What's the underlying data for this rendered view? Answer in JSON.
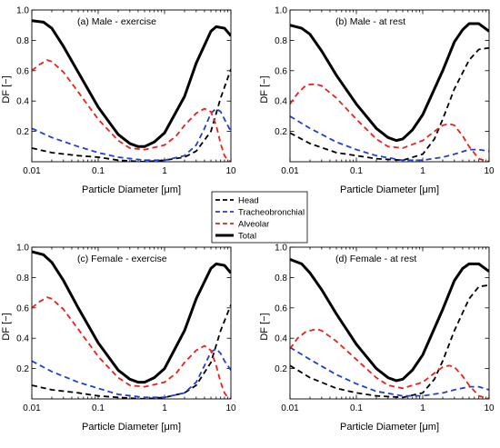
{
  "legend": {
    "entries": [
      {
        "key": "head",
        "label": "Head",
        "color": "#000000",
        "dash": "dashed"
      },
      {
        "key": "tb",
        "label": "Tracheobronchial",
        "color": "#1f3fd6",
        "dash": "dashed"
      },
      {
        "key": "alv",
        "label": "Alveolar",
        "color": "#e8221c",
        "dash": "dashed"
      },
      {
        "key": "total",
        "label": "Total",
        "color": "#000000",
        "dash": "solid"
      }
    ]
  },
  "chart_data": [
    {
      "type": "line",
      "title": "(a)   Male - exercise",
      "xlabel": "Particle Diameter [μm]",
      "ylabel": "DF [−]",
      "xscale": "log",
      "xlim": [
        0.01,
        10
      ],
      "ylim": [
        0,
        1.0
      ],
      "xticks": [
        "0.01",
        "0.1",
        "1",
        "10"
      ],
      "yticks": [
        "0.2",
        "0.4",
        "0.6",
        "0.8",
        "1.0"
      ],
      "series": [
        {
          "key": "total",
          "x": [
            0.01,
            0.015,
            0.02,
            0.03,
            0.05,
            0.1,
            0.2,
            0.3,
            0.4,
            0.5,
            0.7,
            1,
            2,
            3,
            5,
            6,
            8,
            10
          ],
          "y": [
            0.93,
            0.92,
            0.88,
            0.76,
            0.59,
            0.36,
            0.18,
            0.12,
            0.1,
            0.1,
            0.13,
            0.19,
            0.43,
            0.65,
            0.86,
            0.89,
            0.88,
            0.83
          ]
        },
        {
          "key": "head",
          "x": [
            0.01,
            0.02,
            0.05,
            0.1,
            0.2,
            0.5,
            1,
            2,
            3,
            5,
            7,
            10
          ],
          "y": [
            0.09,
            0.06,
            0.04,
            0.03,
            0.01,
            0.0,
            0.01,
            0.03,
            0.07,
            0.2,
            0.42,
            0.61
          ]
        },
        {
          "key": "tb",
          "x": [
            0.01,
            0.02,
            0.05,
            0.1,
            0.2,
            0.5,
            1,
            2,
            3,
            4,
            5,
            6,
            7,
            8,
            10
          ],
          "y": [
            0.22,
            0.16,
            0.1,
            0.06,
            0.03,
            0.01,
            0.01,
            0.04,
            0.11,
            0.22,
            0.32,
            0.35,
            0.33,
            0.28,
            0.2
          ]
        },
        {
          "key": "alv",
          "x": [
            0.01,
            0.013,
            0.017,
            0.02,
            0.03,
            0.05,
            0.1,
            0.2,
            0.3,
            0.5,
            1,
            1.5,
            2,
            3,
            4,
            5,
            6,
            7,
            8,
            9,
            10
          ],
          "y": [
            0.6,
            0.64,
            0.67,
            0.66,
            0.59,
            0.46,
            0.28,
            0.14,
            0.09,
            0.08,
            0.11,
            0.17,
            0.24,
            0.32,
            0.35,
            0.33,
            0.24,
            0.12,
            0.04,
            0.01,
            0.0
          ]
        }
      ]
    },
    {
      "type": "line",
      "title": "(b)   Male - at rest",
      "xlabel": "Particle Diameter [μm]",
      "ylabel": "DF [−]",
      "xscale": "log",
      "xlim": [
        0.01,
        10
      ],
      "ylim": [
        0,
        1.0
      ],
      "xticks": [
        "0.01",
        "0.1",
        "1",
        "10"
      ],
      "yticks": [
        "0.2",
        "0.4",
        "0.6",
        "0.8",
        "1.0"
      ],
      "series": [
        {
          "key": "total",
          "x": [
            0.01,
            0.015,
            0.02,
            0.03,
            0.05,
            0.1,
            0.2,
            0.3,
            0.4,
            0.5,
            0.7,
            1,
            2,
            3,
            4,
            5,
            7,
            10
          ],
          "y": [
            0.9,
            0.88,
            0.84,
            0.73,
            0.57,
            0.38,
            0.22,
            0.16,
            0.14,
            0.15,
            0.21,
            0.31,
            0.6,
            0.79,
            0.87,
            0.91,
            0.91,
            0.86
          ]
        },
        {
          "key": "head",
          "x": [
            0.01,
            0.02,
            0.05,
            0.1,
            0.2,
            0.5,
            1,
            1.5,
            2,
            3,
            5,
            7,
            10
          ],
          "y": [
            0.19,
            0.12,
            0.06,
            0.04,
            0.02,
            0.01,
            0.05,
            0.15,
            0.28,
            0.48,
            0.67,
            0.74,
            0.75
          ]
        },
        {
          "key": "tb",
          "x": [
            0.01,
            0.02,
            0.05,
            0.1,
            0.2,
            0.5,
            1,
            2,
            3,
            5,
            7,
            10
          ],
          "y": [
            0.3,
            0.22,
            0.13,
            0.08,
            0.04,
            0.01,
            0.01,
            0.03,
            0.05,
            0.08,
            0.08,
            0.07
          ]
        },
        {
          "key": "alv",
          "x": [
            0.01,
            0.013,
            0.017,
            0.02,
            0.025,
            0.03,
            0.05,
            0.1,
            0.2,
            0.3,
            0.5,
            1,
            1.5,
            2,
            2.5,
            3,
            4,
            5,
            7,
            10
          ],
          "y": [
            0.38,
            0.45,
            0.5,
            0.51,
            0.51,
            0.5,
            0.42,
            0.28,
            0.15,
            0.1,
            0.09,
            0.14,
            0.2,
            0.24,
            0.25,
            0.24,
            0.17,
            0.1,
            0.02,
            0.0
          ]
        }
      ]
    },
    {
      "type": "line",
      "title": "(c)   Female - exercise",
      "xlabel": "Particle Diameter [μm]",
      "ylabel": "DF [−]",
      "xscale": "log",
      "xlim": [
        0.01,
        10
      ],
      "ylim": [
        0,
        1.0
      ],
      "xticks": [
        "0.01",
        "0.1",
        "1",
        "10"
      ],
      "yticks": [
        "0.2",
        "0.4",
        "0.6",
        "0.8",
        "1.0"
      ],
      "series": [
        {
          "key": "total",
          "x": [
            0.01,
            0.015,
            0.02,
            0.03,
            0.05,
            0.1,
            0.2,
            0.3,
            0.4,
            0.5,
            0.7,
            1,
            2,
            3,
            5,
            6,
            8,
            10
          ],
          "y": [
            0.97,
            0.95,
            0.9,
            0.78,
            0.6,
            0.37,
            0.19,
            0.13,
            0.11,
            0.11,
            0.14,
            0.2,
            0.45,
            0.66,
            0.86,
            0.89,
            0.88,
            0.83
          ]
        },
        {
          "key": "head",
          "x": [
            0.01,
            0.02,
            0.05,
            0.1,
            0.2,
            0.5,
            1,
            2,
            3,
            5,
            7,
            10
          ],
          "y": [
            0.09,
            0.06,
            0.04,
            0.02,
            0.01,
            0.0,
            0.01,
            0.04,
            0.09,
            0.24,
            0.45,
            0.62
          ]
        },
        {
          "key": "tb",
          "x": [
            0.01,
            0.02,
            0.05,
            0.1,
            0.2,
            0.5,
            1,
            2,
            3,
            4,
            5,
            6,
            7,
            8,
            10
          ],
          "y": [
            0.25,
            0.18,
            0.11,
            0.07,
            0.03,
            0.01,
            0.01,
            0.04,
            0.11,
            0.22,
            0.31,
            0.33,
            0.3,
            0.25,
            0.19
          ]
        },
        {
          "key": "alv",
          "x": [
            0.01,
            0.013,
            0.017,
            0.02,
            0.03,
            0.05,
            0.1,
            0.2,
            0.3,
            0.5,
            1,
            1.5,
            2,
            3,
            4,
            5,
            6,
            7,
            8,
            9,
            10
          ],
          "y": [
            0.6,
            0.64,
            0.67,
            0.66,
            0.59,
            0.46,
            0.28,
            0.14,
            0.09,
            0.08,
            0.11,
            0.17,
            0.24,
            0.32,
            0.35,
            0.32,
            0.22,
            0.11,
            0.04,
            0.01,
            0.0
          ]
        }
      ]
    },
    {
      "type": "line",
      "title": "(d)   Female - at rest",
      "xlabel": "Particle Diameter [μm]",
      "ylabel": "DF [−]",
      "xscale": "log",
      "xlim": [
        0.01,
        10
      ],
      "ylim": [
        0,
        1.0
      ],
      "xticks": [
        "0.01",
        "0.1",
        "1",
        "10"
      ],
      "yticks": [
        "0.2",
        "0.4",
        "0.6",
        "0.8",
        "1.0"
      ],
      "series": [
        {
          "key": "total",
          "x": [
            0.01,
            0.015,
            0.02,
            0.03,
            0.05,
            0.1,
            0.2,
            0.3,
            0.4,
            0.5,
            0.7,
            1,
            2,
            3,
            4,
            5,
            7,
            10
          ],
          "y": [
            0.92,
            0.89,
            0.83,
            0.72,
            0.56,
            0.36,
            0.2,
            0.14,
            0.12,
            0.13,
            0.19,
            0.29,
            0.59,
            0.78,
            0.86,
            0.89,
            0.89,
            0.84
          ]
        },
        {
          "key": "head",
          "x": [
            0.01,
            0.02,
            0.05,
            0.1,
            0.2,
            0.5,
            1,
            1.5,
            2,
            3,
            5,
            7,
            10
          ],
          "y": [
            0.22,
            0.14,
            0.07,
            0.04,
            0.02,
            0.01,
            0.04,
            0.13,
            0.25,
            0.45,
            0.66,
            0.74,
            0.75
          ]
        },
        {
          "key": "tb",
          "x": [
            0.01,
            0.02,
            0.05,
            0.1,
            0.2,
            0.5,
            1,
            2,
            3,
            5,
            7,
            10
          ],
          "y": [
            0.34,
            0.26,
            0.16,
            0.1,
            0.05,
            0.02,
            0.02,
            0.04,
            0.06,
            0.08,
            0.08,
            0.06
          ]
        },
        {
          "key": "alv",
          "x": [
            0.01,
            0.013,
            0.017,
            0.02,
            0.025,
            0.03,
            0.05,
            0.1,
            0.2,
            0.3,
            0.5,
            1,
            1.5,
            2,
            2.5,
            3,
            4,
            5,
            7,
            10
          ],
          "y": [
            0.33,
            0.4,
            0.44,
            0.45,
            0.46,
            0.45,
            0.38,
            0.26,
            0.14,
            0.09,
            0.07,
            0.11,
            0.17,
            0.21,
            0.22,
            0.21,
            0.15,
            0.09,
            0.02,
            0.0
          ]
        }
      ]
    }
  ]
}
